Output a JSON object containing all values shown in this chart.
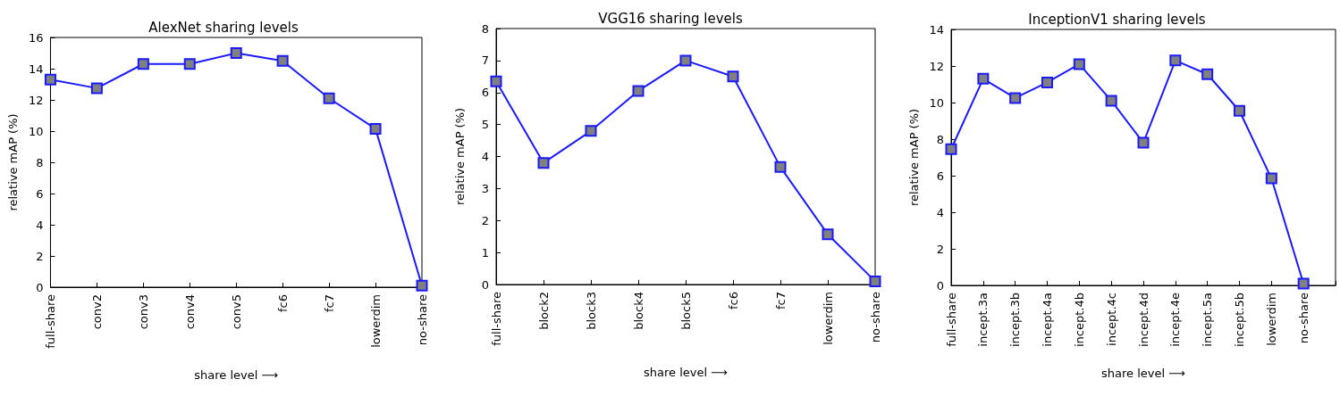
{
  "chart_data": [
    {
      "type": "line",
      "title": "AlexNet sharing levels",
      "xlabel": "share level ⟶",
      "ylabel": "relative mAP (%)",
      "categories": [
        "full-share",
        "conv2",
        "conv3",
        "conv4",
        "conv5",
        "fc6",
        "fc7",
        "lowerdim",
        "no-share"
      ],
      "series": [
        {
          "color": "#1a1aff",
          "values": [
            13.3,
            12.75,
            14.3,
            14.3,
            15.0,
            14.5,
            12.1,
            10.15,
            0.1
          ]
        }
      ],
      "ylim": [
        0,
        16
      ],
      "yticks": [
        0,
        2,
        4,
        6,
        8,
        10,
        12,
        14,
        16
      ],
      "grid": false,
      "marker": "square",
      "line_style": "solid"
    },
    {
      "type": "line",
      "title": "VGG16 sharing levels",
      "xlabel": "share level ⟶",
      "ylabel": "relative mAP (%)",
      "categories": [
        "full-share",
        "block2",
        "block3",
        "block4",
        "block5",
        "fc6",
        "fc7",
        "lowerdim",
        "no-share"
      ],
      "series": [
        {
          "color": "#1a1aff",
          "values": [
            6.35,
            3.8,
            4.8,
            6.05,
            7.0,
            6.5,
            3.67,
            1.57,
            0.1
          ]
        }
      ],
      "ylim": [
        0,
        8
      ],
      "yticks": [
        0,
        1,
        2,
        3,
        4,
        5,
        6,
        7,
        8
      ],
      "grid": false,
      "marker": "square",
      "line_style": "solid"
    },
    {
      "type": "line",
      "title": "InceptionV1 sharing levels",
      "xlabel": "share level ⟶",
      "ylabel": "relative mAP (%)",
      "categories": [
        "full-share",
        "incept.3a",
        "incept.3b",
        "incept.4a",
        "incept.4b",
        "incept.4c",
        "incept.4d",
        "incept.4e",
        "incept.5a",
        "incept.5b",
        "lowerdim",
        "no-share",
        null
      ],
      "series": [
        {
          "color": "#1a1aff",
          "values": [
            7.45,
            11.3,
            10.25,
            11.1,
            12.1,
            10.1,
            7.8,
            12.3,
            11.55,
            9.55,
            5.85,
            0.1,
            null
          ]
        }
      ],
      "ylim": [
        0,
        14
      ],
      "yticks": [
        0,
        2,
        4,
        6,
        8,
        10,
        12,
        14
      ],
      "grid": false,
      "marker": "square",
      "line_style": "solid"
    }
  ]
}
